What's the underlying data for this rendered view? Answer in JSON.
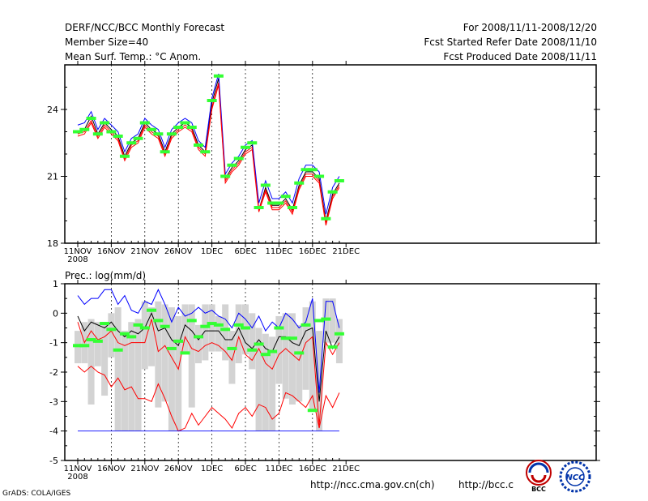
{
  "header": {
    "title": "DERF/NCC/BCC Monthly Forecast",
    "member_size": "Member Size=40",
    "variable": "Mean Surf. Temp.: °C Anom.",
    "period": "For 2008/11/11-2008/12/20",
    "refer_date": "Fcst Started Refer Date 2008/11/10",
    "produced_date": "Fcst Produced Date 2008/11/11"
  },
  "footer": {
    "grads": "GrADS: COLA/IGES",
    "url_ncc": "http://ncc.cma.gov.cn(ch)",
    "url_bcc": "http://bcc.c",
    "logo_bcc": "BCC",
    "logo_ncc": "NCC"
  },
  "colors": {
    "frame": "#000000",
    "mean": "#000000",
    "upper": "#0000ff",
    "lower": "#ff0000",
    "member": "#33ff33",
    "box": "#d3d3d3"
  },
  "chart_data": [
    {
      "type": "line",
      "title": "Mean Surf. Temp.: °C Anom.",
      "ylim": [
        18,
        26
      ],
      "yticks": [
        18,
        21,
        24
      ],
      "x": [
        1,
        2,
        3,
        4,
        5,
        6,
        7,
        8,
        9,
        10,
        11,
        12,
        13,
        14,
        15,
        16,
        17,
        18,
        19,
        20,
        21,
        22,
        23,
        24,
        25,
        26,
        27,
        28,
        29,
        30,
        31,
        32,
        33,
        34,
        35,
        36,
        37,
        38,
        39,
        40
      ],
      "xtick_labels": [
        "11NOV",
        "16NOV",
        "21NOV",
        "26NOV",
        "1DEC",
        "6DEC",
        "11DEC",
        "16DEC",
        "21DEC"
      ],
      "xtick_year": "2008",
      "series": [
        {
          "name": "ensemble mean",
          "color": "#000000",
          "values": [
            23.0,
            23.1,
            23.7,
            22.9,
            23.4,
            23.1,
            22.8,
            21.9,
            22.5,
            22.7,
            23.4,
            23.1,
            22.9,
            22.1,
            22.9,
            23.2,
            23.4,
            23.2,
            22.4,
            22.1,
            24.3,
            25.4,
            20.9,
            21.4,
            21.7,
            22.2,
            22.4,
            19.5,
            20.5,
            19.7,
            19.7,
            20.0,
            19.5,
            20.6,
            21.2,
            21.2,
            20.9,
            19.0,
            20.2,
            20.7
          ]
        },
        {
          "name": "upper",
          "color": "#0000ff",
          "values": [
            23.3,
            23.4,
            23.9,
            23.1,
            23.6,
            23.3,
            23.0,
            22.1,
            22.7,
            22.9,
            23.6,
            23.3,
            23.1,
            22.3,
            23.1,
            23.4,
            23.6,
            23.4,
            22.6,
            22.3,
            24.5,
            25.6,
            21.1,
            21.6,
            21.9,
            22.4,
            22.6,
            19.8,
            20.8,
            20.0,
            20.0,
            20.3,
            19.8,
            20.9,
            21.5,
            21.5,
            21.2,
            19.3,
            20.5,
            21.0
          ]
        },
        {
          "name": "lower 1",
          "color": "#ff0000",
          "values": [
            22.9,
            23.0,
            23.5,
            22.8,
            23.3,
            23.0,
            22.7,
            21.8,
            22.4,
            22.6,
            23.3,
            23.0,
            22.8,
            22.0,
            22.8,
            23.1,
            23.3,
            23.1,
            22.3,
            22.0,
            24.1,
            25.2,
            20.8,
            21.3,
            21.6,
            22.1,
            22.3,
            19.5,
            20.4,
            19.6,
            19.6,
            19.9,
            19.4,
            20.5,
            21.1,
            21.1,
            20.8,
            18.9,
            20.1,
            20.6
          ]
        },
        {
          "name": "lower 2",
          "color": "#ff0000",
          "values": [
            22.8,
            22.9,
            23.4,
            22.7,
            23.2,
            22.9,
            22.6,
            21.7,
            22.3,
            22.5,
            23.2,
            22.9,
            22.7,
            21.9,
            22.7,
            23.0,
            23.2,
            23.0,
            22.2,
            21.9,
            24.0,
            25.1,
            20.7,
            21.2,
            21.5,
            22.0,
            22.2,
            19.4,
            20.3,
            19.5,
            19.5,
            19.8,
            19.3,
            20.4,
            21.0,
            21.0,
            20.7,
            18.8,
            20.0,
            20.5
          ]
        },
        {
          "name": "member markers",
          "color": "#33ff33",
          "values": [
            23.0,
            23.1,
            23.6,
            22.9,
            23.4,
            23.0,
            22.8,
            21.9,
            22.5,
            22.7,
            23.4,
            23.1,
            22.9,
            22.1,
            22.9,
            23.2,
            23.4,
            23.2,
            22.4,
            22.1,
            24.4,
            25.5,
            21.0,
            21.5,
            21.8,
            22.3,
            22.5,
            19.6,
            20.6,
            19.8,
            19.8,
            20.1,
            19.6,
            20.7,
            21.3,
            21.3,
            21.0,
            19.1,
            20.3,
            20.8
          ]
        }
      ]
    },
    {
      "type": "line",
      "title": "Prec.: log(mm/d)",
      "ylim": [
        -5,
        1
      ],
      "yticks": [
        1,
        0,
        -1,
        -2,
        -3,
        -4,
        -5
      ],
      "x": [
        1,
        2,
        3,
        4,
        5,
        6,
        7,
        8,
        9,
        10,
        11,
        12,
        13,
        14,
        15,
        16,
        17,
        18,
        19,
        20,
        21,
        22,
        23,
        24,
        25,
        26,
        27,
        28,
        29,
        30,
        31,
        32,
        33,
        34,
        35,
        36,
        37,
        38,
        39,
        40
      ],
      "xtick_labels": [
        "11NOV",
        "16NOV",
        "21NOV",
        "26NOV",
        "1DEC",
        "6DEC",
        "11DEC",
        "16DEC",
        "21DEC"
      ],
      "xtick_year": "2008",
      "box_low": [
        -1.7,
        -1.7,
        -3.1,
        -1.8,
        -2.8,
        -1.5,
        -4.0,
        -4.0,
        -4.0,
        -4.0,
        -1.9,
        -1.8,
        -3.2,
        -3.0,
        -4.0,
        -4.0,
        -1.3,
        -3.2,
        -1.7,
        -1.6,
        -1.3,
        -1.3,
        -1.6,
        -2.4,
        -1.7,
        -1.4,
        -1.9,
        -4.0,
        -4.0,
        -4.0,
        -2.4,
        -2.9,
        -3.1,
        -3.0,
        -2.6,
        -3.3,
        -4.0,
        -1.0,
        -1.0,
        -1.7
      ],
      "box_high": [
        -0.6,
        -0.3,
        -0.2,
        -0.3,
        -0.3,
        0.0,
        0.2,
        -0.6,
        -0.3,
        -0.2,
        0.4,
        0.2,
        0.4,
        0.3,
        0.2,
        -0.1,
        0.3,
        0.3,
        -0.4,
        0.3,
        0.3,
        -0.1,
        0.3,
        -0.6,
        0.3,
        0.3,
        0.0,
        -0.5,
        -0.7,
        -0.8,
        -0.1,
        0.0,
        0.0,
        -0.4,
        0.2,
        0.4,
        -0.6,
        0.5,
        0.5,
        -0.2
      ],
      "series": [
        {
          "name": "upper",
          "color": "#0000ff",
          "values": [
            0.6,
            0.3,
            0.5,
            0.5,
            0.8,
            0.8,
            0.3,
            0.6,
            0.1,
            0.0,
            0.4,
            0.3,
            0.8,
            0.3,
            -0.3,
            0.2,
            -0.1,
            0.0,
            0.2,
            0.0,
            0.1,
            -0.1,
            -0.2,
            -0.5,
            0.0,
            -0.2,
            -0.5,
            -0.1,
            -0.6,
            -0.3,
            -0.5,
            0.0,
            -0.2,
            -0.5,
            -0.3,
            0.5,
            -2.7,
            0.4,
            0.4,
            -0.5
          ]
        },
        {
          "name": "ensemble mean",
          "color": "#000000",
          "values": [
            -0.1,
            -0.6,
            -0.3,
            -0.4,
            -0.5,
            -0.3,
            -0.6,
            -0.8,
            -0.6,
            -0.7,
            -0.5,
            0.0,
            -0.6,
            -0.5,
            -0.9,
            -1.1,
            -0.4,
            -0.6,
            -0.9,
            -0.6,
            -0.6,
            -0.6,
            -0.9,
            -0.9,
            -0.5,
            -1.0,
            -1.2,
            -0.9,
            -1.2,
            -1.3,
            -0.8,
            -0.8,
            -1.0,
            -1.1,
            -0.6,
            -0.5,
            -3.0,
            -0.6,
            -1.2,
            -0.8
          ]
        },
        {
          "name": "lower 1",
          "color": "#ff0000",
          "values": [
            -0.3,
            -1.0,
            -0.6,
            -0.9,
            -0.8,
            -0.6,
            -1.0,
            -1.1,
            -1.0,
            -1.0,
            -1.0,
            -0.2,
            -1.3,
            -1.1,
            -1.5,
            -1.9,
            -0.8,
            -1.2,
            -1.3,
            -1.1,
            -1.0,
            -1.1,
            -1.3,
            -1.6,
            -0.8,
            -1.4,
            -1.6,
            -1.2,
            -1.7,
            -1.9,
            -1.4,
            -1.2,
            -1.4,
            -1.6,
            -1.0,
            -0.8,
            -3.8,
            -1.0,
            -1.4,
            -1.0
          ]
        },
        {
          "name": "lower 2",
          "color": "#ff0000",
          "values": [
            -1.8,
            -2.0,
            -1.8,
            -2.0,
            -2.1,
            -2.5,
            -2.2,
            -2.6,
            -2.5,
            -2.9,
            -2.9,
            -3.0,
            -2.4,
            -2.9,
            -3.5,
            -4.0,
            -3.9,
            -3.4,
            -3.8,
            -3.5,
            -3.2,
            -3.4,
            -3.6,
            -3.9,
            -3.4,
            -3.2,
            -3.5,
            -3.1,
            -3.2,
            -3.6,
            -3.4,
            -2.7,
            -2.8,
            -3.0,
            -3.2,
            -2.8,
            -3.9,
            -2.8,
            -3.2,
            -2.7
          ]
        },
        {
          "name": "lower bound",
          "color": "#0000ff",
          "values": [
            -4.0,
            -4.0,
            -4.0,
            -4.0,
            -4.0,
            -4.0,
            -4.0,
            -4.0,
            -4.0,
            -4.0,
            -4.0,
            -4.0,
            -4.0,
            -4.0,
            -4.0,
            -4.0,
            -4.0,
            -4.0,
            -4.0,
            -4.0,
            -4.0,
            -4.0,
            -4.0,
            -4.0,
            -4.0,
            -4.0,
            -4.0,
            -4.0,
            -4.0,
            -4.0,
            -4.0,
            -4.0,
            -4.0,
            -4.0,
            -4.0,
            -4.0,
            -4.0,
            -4.0,
            -4.0,
            -4.0
          ]
        },
        {
          "name": "member markers",
          "color": "#33ff33",
          "values": [
            -1.1,
            -1.1,
            -0.9,
            -0.95,
            -0.35,
            -0.55,
            -1.25,
            -0.7,
            -0.8,
            -0.4,
            -0.5,
            0.1,
            -0.25,
            -0.45,
            -1.2,
            -0.95,
            -1.35,
            -0.25,
            -0.8,
            -0.45,
            -0.35,
            -0.4,
            -0.55,
            -1.2,
            -0.4,
            -0.5,
            -1.25,
            -1.05,
            -1.4,
            -1.3,
            -0.5,
            -0.85,
            -0.85,
            -1.35,
            -0.4,
            -3.3,
            -0.25,
            -0.2,
            -1.15,
            -0.7
          ]
        }
      ]
    }
  ]
}
